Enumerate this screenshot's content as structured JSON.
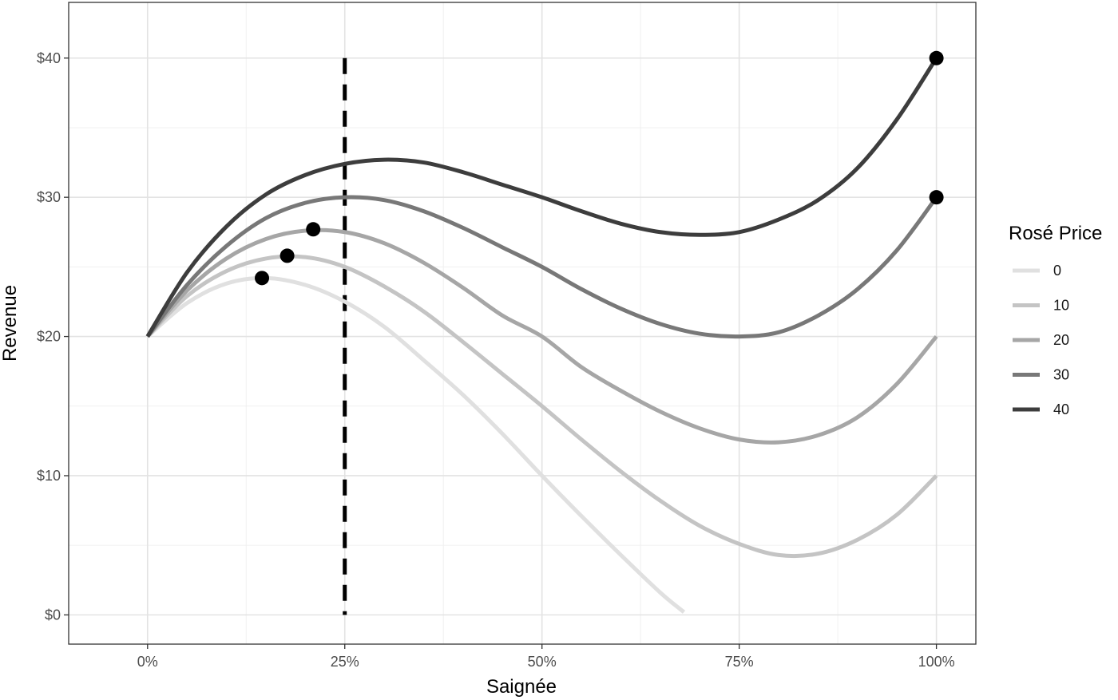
{
  "chart_data": {
    "type": "line",
    "xlabel": "Saignée",
    "ylabel": "Revenue",
    "xlim": [
      -0.1,
      1.05
    ],
    "ylim": [
      -2.1,
      44
    ],
    "x_ticks": [
      0,
      0.25,
      0.5,
      0.75,
      1.0
    ],
    "x_tick_labels": [
      "0%",
      "25%",
      "50%",
      "75%",
      "100%"
    ],
    "y_ticks": [
      0,
      10,
      20,
      30,
      40
    ],
    "y_tick_labels": [
      "$0",
      "$10",
      "$20",
      "$30",
      "$40"
    ],
    "grid": true,
    "legend": {
      "title": "Rosé Price",
      "position": "right"
    },
    "reference_line": {
      "x": 0.25,
      "style": "dashed",
      "y_range": [
        0,
        40
      ]
    },
    "series": [
      {
        "name": "0",
        "color": "#e0e0e0",
        "x": [
          0,
          0.05,
          0.1,
          0.15,
          0.2,
          0.25,
          0.3,
          0.35,
          0.4,
          0.45,
          0.5,
          0.55,
          0.6,
          0.65,
          0.68
        ],
        "y": [
          20,
          22.4,
          23.8,
          24.2,
          23.7,
          22.5,
          20.7,
          18.3,
          15.8,
          13.0,
          10.0,
          7.1,
          4.3,
          1.6,
          0.2
        ]
      },
      {
        "name": "10",
        "color": "#c4c4c4",
        "x": [
          0,
          0.05,
          0.1,
          0.15,
          0.2,
          0.25,
          0.3,
          0.35,
          0.4,
          0.45,
          0.5,
          0.55,
          0.6,
          0.65,
          0.7,
          0.75,
          0.8,
          0.85,
          0.9,
          0.95,
          1.0
        ],
        "y": [
          20,
          22.9,
          24.7,
          25.6,
          25.7,
          25.0,
          23.6,
          21.8,
          19.6,
          17.3,
          15.0,
          12.6,
          10.3,
          8.2,
          6.4,
          5.1,
          4.3,
          4.4,
          5.4,
          7.2,
          10.0
        ]
      },
      {
        "name": "20",
        "color": "#a6a6a6",
        "x": [
          0,
          0.05,
          0.1,
          0.15,
          0.2,
          0.25,
          0.3,
          0.35,
          0.4,
          0.45,
          0.5,
          0.55,
          0.6,
          0.65,
          0.7,
          0.75,
          0.8,
          0.85,
          0.9,
          0.95,
          1.0
        ],
        "y": [
          20,
          23.3,
          25.6,
          27.0,
          27.6,
          27.5,
          26.7,
          25.3,
          23.5,
          21.5,
          20.0,
          17.8,
          16.1,
          14.6,
          13.4,
          12.6,
          12.4,
          12.9,
          14.2,
          16.6,
          20.0
        ]
      },
      {
        "name": "30",
        "color": "#787878",
        "x": [
          0,
          0.05,
          0.1,
          0.15,
          0.2,
          0.25,
          0.3,
          0.35,
          0.4,
          0.45,
          0.5,
          0.55,
          0.6,
          0.65,
          0.7,
          0.75,
          0.8,
          0.85,
          0.9,
          0.95,
          1.0
        ],
        "y": [
          20,
          23.7,
          26.5,
          28.5,
          29.6,
          30.0,
          29.8,
          29.0,
          27.8,
          26.4,
          25.0,
          23.4,
          22.0,
          20.9,
          20.2,
          20.0,
          20.3,
          21.5,
          23.4,
          26.2,
          30.0
        ]
      },
      {
        "name": "40",
        "color": "#3d3d3d",
        "x": [
          0,
          0.05,
          0.1,
          0.15,
          0.2,
          0.25,
          0.3,
          0.35,
          0.4,
          0.45,
          0.5,
          0.55,
          0.6,
          0.65,
          0.7,
          0.75,
          0.8,
          0.85,
          0.9,
          0.95,
          1.0
        ],
        "y": [
          20,
          24.6,
          27.9,
          30.2,
          31.6,
          32.4,
          32.7,
          32.5,
          31.8,
          30.9,
          30.0,
          29.0,
          28.1,
          27.5,
          27.3,
          27.5,
          28.4,
          29.8,
          32.1,
          35.6,
          40.0
        ]
      }
    ],
    "points": [
      {
        "x": 0.145,
        "y": 24.2
      },
      {
        "x": 0.177,
        "y": 25.8
      },
      {
        "x": 0.21,
        "y": 27.7
      },
      {
        "x": 1.0,
        "y": 30.0
      },
      {
        "x": 1.0,
        "y": 40.0
      }
    ]
  }
}
